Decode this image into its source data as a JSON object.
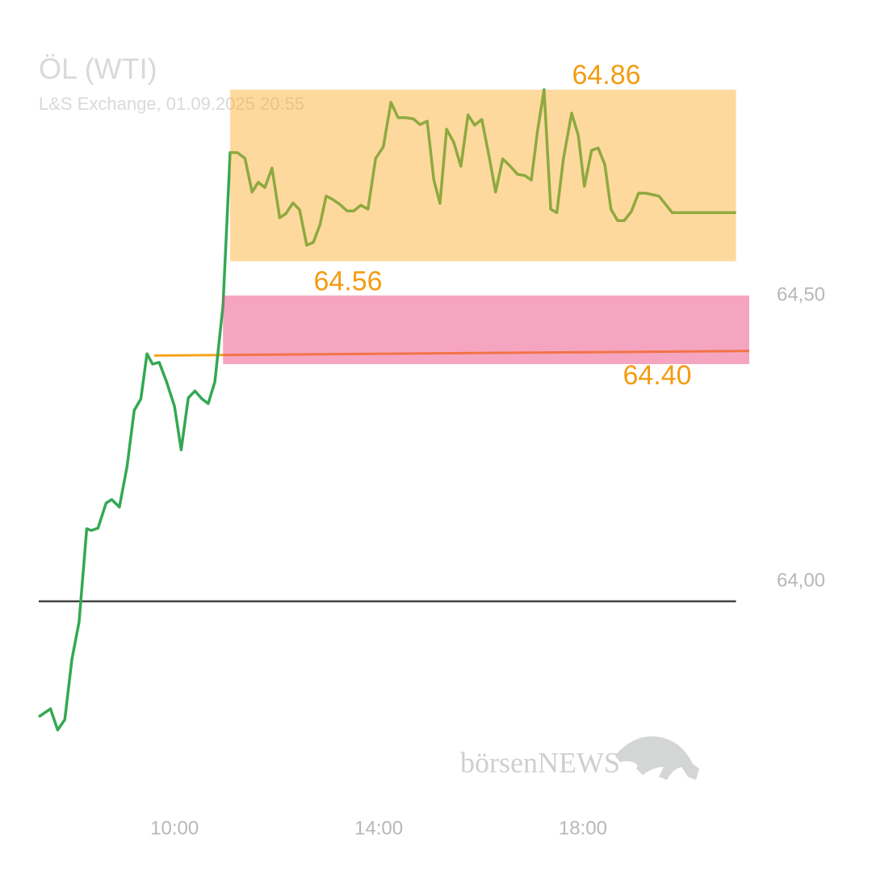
{
  "chart_data": {
    "type": "line",
    "title": "ÖL (WTI)",
    "subtitle": "L&S Exchange, 01.09.2025 20:55",
    "watermark": "börsenNEWS",
    "x": [
      7.34,
      7.57,
      7.71,
      7.85,
      7.99,
      8.13,
      8.28,
      8.37,
      8.5,
      8.66,
      8.77,
      8.92,
      9.07,
      9.21,
      9.34,
      9.46,
      9.57,
      9.7,
      9.84,
      10.0,
      10.13,
      10.27,
      10.4,
      10.54,
      10.66,
      10.79,
      10.95,
      11.09,
      11.23,
      11.38,
      11.52,
      11.64,
      11.77,
      11.91,
      12.06,
      12.18,
      12.32,
      12.45,
      12.59,
      12.72,
      12.85,
      12.97,
      13.1,
      13.23,
      13.38,
      13.51,
      13.65,
      13.79,
      13.94,
      14.09,
      14.24,
      14.38,
      14.54,
      14.68,
      14.81,
      14.95,
      15.08,
      15.2,
      15.33,
      15.47,
      15.61,
      15.75,
      15.88,
      16.02,
      16.17,
      16.29,
      16.43,
      16.58,
      16.72,
      16.86,
      16.99,
      17.11,
      17.24,
      17.37,
      17.49,
      17.62,
      17.78,
      17.91,
      18.03,
      18.17,
      18.3,
      18.43,
      18.55,
      18.68,
      18.81,
      18.95,
      19.09,
      19.23,
      19.49,
      19.75,
      21.0
    ],
    "series": [
      {
        "color": "#34a853",
        "values": [
          63.763,
          63.777,
          63.74,
          63.758,
          63.864,
          63.929,
          64.092,
          64.089,
          64.093,
          64.137,
          64.143,
          64.13,
          64.201,
          64.299,
          64.319,
          64.398,
          64.38,
          64.383,
          64.35,
          64.306,
          64.23,
          64.321,
          64.333,
          64.319,
          64.311,
          64.349,
          64.483,
          64.75,
          64.75,
          64.74,
          64.681,
          64.698,
          64.689,
          64.723,
          64.636,
          64.643,
          64.662,
          64.65,
          64.588,
          64.593,
          64.624,
          64.674,
          64.668,
          64.66,
          64.648,
          64.648,
          64.658,
          64.651,
          64.74,
          64.76,
          64.838,
          64.811,
          64.811,
          64.809,
          64.799,
          64.805,
          64.702,
          64.661,
          64.791,
          64.768,
          64.726,
          64.816,
          64.798,
          64.808,
          64.74,
          64.681,
          64.739,
          64.726,
          64.712,
          64.71,
          64.702,
          64.787,
          64.86,
          64.651,
          64.645,
          64.74,
          64.819,
          64.78,
          64.691,
          64.754,
          64.758,
          64.729,
          64.651,
          64.631,
          64.631,
          64.647,
          64.679,
          64.679,
          64.674,
          64.645,
          64.645
        ]
      }
    ],
    "xlim": [
      7.34,
      21.26
    ],
    "xticks": [
      {
        "value": 10,
        "label": "10:00"
      },
      {
        "value": 14,
        "label": "14:00"
      },
      {
        "value": 18,
        "label": "18:00"
      }
    ],
    "ylim": [
      63.6,
      65.0
    ],
    "yticks": [
      {
        "value": 64,
        "label": "64,00"
      },
      {
        "value": 64.5,
        "label": "64,50"
      }
    ],
    "reference_line": 63.965,
    "annotations": {
      "high": 64.86,
      "low": 64.56,
      "range_start": 11.09,
      "zone": [
        64.38,
        64.5
      ],
      "zone_start": 10.95,
      "support": {
        "value": 64.4,
        "label": "64.40"
      },
      "trend_line": {
        "x": [
          9.6,
          21.26
        ],
        "y": [
          64.395,
          64.403
        ]
      }
    }
  }
}
